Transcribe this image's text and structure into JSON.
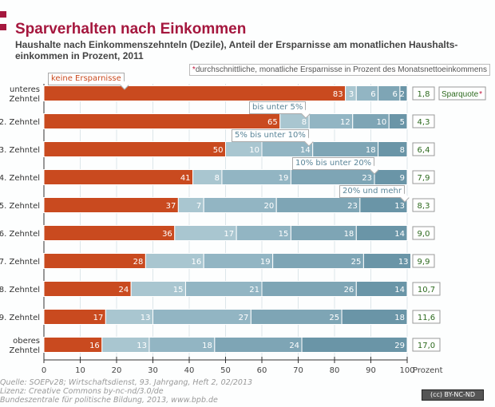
{
  "header": {
    "title": "Sparverhalten nach Einkommen",
    "subtitle": "Haushalte nach Einkommenszehnteln (Dezile), Anteil der Ersparnisse am monatlichen Haushalts-einkommen in Prozent, 2011",
    "note_star": "*",
    "note": "durchschnittliche, monatliche Ersparnisse in Prozent des Monatsnettoeinkommens"
  },
  "chart_data": {
    "type": "bar",
    "stacked": true,
    "orientation": "horizontal",
    "title": "Sparverhalten nach Einkommen",
    "xlabel": "Prozent",
    "xlim": [
      0,
      100
    ],
    "xticks": [
      0,
      10,
      20,
      30,
      40,
      50,
      60,
      70,
      80,
      90,
      100
    ],
    "categories": [
      "unteres Zehntel",
      "2. Zehntel",
      "3. Zehntel",
      "4. Zehntel",
      "5. Zehntel",
      "6. Zehntel",
      "7. Zehntel",
      "8. Zehntel",
      "9. Zehntel",
      "oberes Zehntel"
    ],
    "series": [
      {
        "name": "keine Ersparnisse",
        "color": "#c94a1f",
        "values": [
          83,
          65,
          50,
          41,
          37,
          36,
          28,
          24,
          17,
          16
        ]
      },
      {
        "name": "bis unter 5%",
        "color": "#a9c6d0",
        "values": [
          3,
          8,
          10,
          8,
          7,
          17,
          16,
          15,
          13,
          13
        ]
      },
      {
        "name": "5% bis unter 10%",
        "color": "#92b5c3",
        "values": [
          6,
          12,
          14,
          19,
          20,
          15,
          19,
          21,
          27,
          18
        ]
      },
      {
        "name": "10% bis unter 20%",
        "color": "#7ea5b5",
        "values": [
          6,
          10,
          18,
          23,
          23,
          18,
          25,
          26,
          25,
          24
        ]
      },
      {
        "name": "20% und mehr",
        "color": "#6a95a7",
        "values": [
          2,
          5,
          8,
          9,
          13,
          14,
          13,
          14,
          18,
          29
        ]
      }
    ],
    "sparquote_label": "Sparquote",
    "sparquote_star": "*",
    "sparquote": [
      "1,8",
      "4,3",
      "6,4",
      "7,9",
      "8,3",
      "9,0",
      "9,9",
      "10,7",
      "11,6",
      "17,0"
    ]
  },
  "footer": {
    "source": "Quelle: SOEPv28; Wirtschaftsdienst, 93. Jahrgang, Heft 2, 02/2013",
    "license": "Lizenz: Creative Commons  by-nc-nd/3.0/de",
    "publisher": "Bundeszentrale für politische Bildung, 2013, www.bpb.de",
    "cc_badge": "(cc) BY-NC-ND"
  }
}
